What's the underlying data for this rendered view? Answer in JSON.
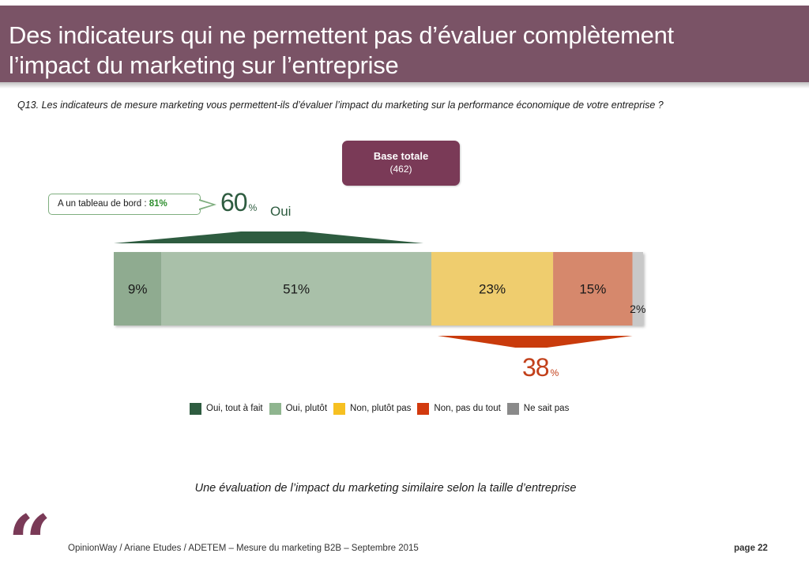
{
  "slide": {
    "title_line1": "Des indicateurs qui ne permettent pas d’évaluer complètement",
    "title_line2": "l’impact du marketing sur l’entreprise",
    "question": "Q13. Les indicateurs de mesure marketing vous permettent-ils d’évaluer l’impact du marketing sur la performance économique de votre entreprise ?",
    "base_label": "Base totale",
    "base_n": "(462)",
    "callout_label": "A un tableau de bord : ",
    "callout_value": "81%",
    "oui_total": "60",
    "oui_pct_sign": "%",
    "oui_label": "Oui",
    "non_total": "38",
    "non_pct_sign": "%",
    "subtitle": "Une évaluation de l’impact du marketing similaire selon la taille d’entreprise",
    "footer": "OpinionWay / Ariane Etudes / ADETEM – Mesure du marketing B2B – Septembre 2015",
    "page": "page 22",
    "colors": {
      "header": "#7a5366",
      "accent": "#7a3a57",
      "oui_bracket": "#2e5c40",
      "non_bracket": "#c93b0c"
    }
  },
  "chart_data": {
    "type": "bar",
    "orientation": "horizontal-stacked",
    "categories": [
      "Base totale"
    ],
    "series": [
      {
        "name": "Oui, tout à fait",
        "values": [
          9
        ],
        "label": "9%",
        "color": "#8fab90",
        "legend_color": "#2e5c40"
      },
      {
        "name": "Oui, plutôt",
        "values": [
          51
        ],
        "label": "51%",
        "color": "#a9c0a9",
        "legend_color": "#8fb58f"
      },
      {
        "name": "Non, plutôt pas",
        "values": [
          23
        ],
        "label": "23%",
        "color": "#efcd6e",
        "legend_color": "#f6c021"
      },
      {
        "name": "Non, pas du tout",
        "values": [
          15
        ],
        "label": "15%",
        "color": "#d6886c",
        "legend_color": "#d23a0e"
      },
      {
        "name": "Ne sait pas",
        "values": [
          2
        ],
        "label": "2%",
        "color": "#c8c8c8",
        "legend_color": "#8a8a8a"
      }
    ],
    "xlim": [
      0,
      100
    ],
    "legend": "bottom"
  }
}
